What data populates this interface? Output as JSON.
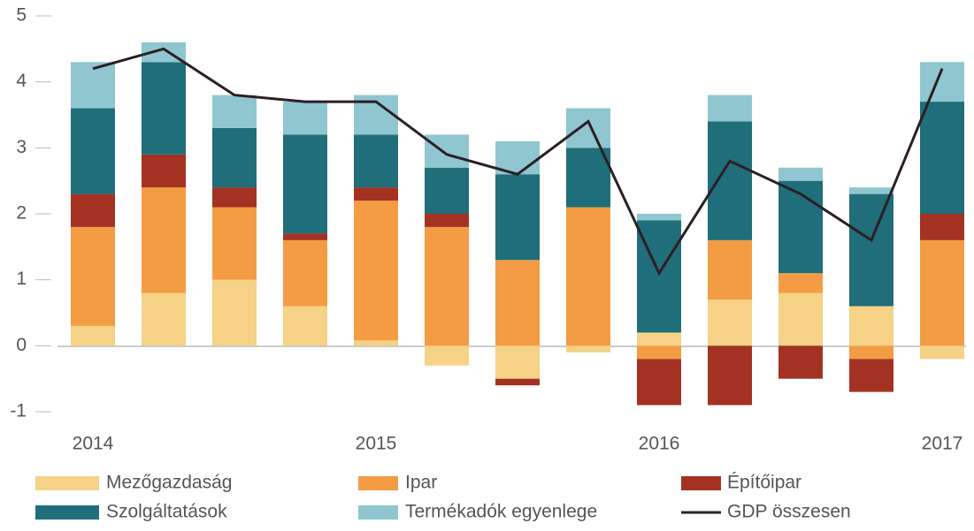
{
  "chart_data": {
    "type": "bar",
    "stacked": true,
    "categories": [
      "2014",
      null,
      null,
      null,
      "2015",
      null,
      null,
      null,
      "2016",
      null,
      null,
      null,
      "2017"
    ],
    "ylim": [
      -1,
      5
    ],
    "yticks": [
      -1,
      0,
      1,
      2,
      3,
      4,
      5
    ],
    "grid": false,
    "legend": "bottom",
    "series": [
      {
        "name": "Mezőgazdaság",
        "color": "#f5d285",
        "values": [
          0.3,
          0.8,
          1.0,
          0.6,
          0.08,
          -0.3,
          -0.5,
          -0.1,
          0.2,
          0.7,
          0.8,
          0.6,
          -0.2
        ]
      },
      {
        "name": "Ipar",
        "color": "#f39c44",
        "values": [
          1.5,
          1.6,
          1.1,
          1.0,
          2.12,
          1.8,
          1.3,
          2.1,
          -0.2,
          0.9,
          0.3,
          -0.2,
          1.6
        ]
      },
      {
        "name": "Építőipar",
        "color": "#a33222",
        "values": [
          0.5,
          0.5,
          0.3,
          0.1,
          0.2,
          0.2,
          -0.1,
          0,
          -0.7,
          -0.9,
          -0.5,
          -0.5,
          0.4
        ]
      },
      {
        "name": "Szolgáltatások",
        "color": "#1f6e7a",
        "values": [
          1.3,
          1.4,
          0.9,
          1.5,
          0.8,
          0.7,
          1.3,
          0.9,
          1.7,
          1.8,
          1.4,
          1.7,
          1.7
        ]
      },
      {
        "name": "Termékadók egyenlege",
        "color": "#8fc6d0",
        "values": [
          0.7,
          0.3,
          0.5,
          0.5,
          0.6,
          0.5,
          0.5,
          0.6,
          0.1,
          0.4,
          0.2,
          0.1,
          0.6
        ]
      },
      {
        "name": "GDP összesen",
        "color": "#2b1f24",
        "type": "line",
        "values": [
          4.2,
          4.5,
          3.8,
          3.7,
          3.7,
          2.9,
          2.6,
          3.4,
          1.1,
          2.8,
          2.3,
          1.6,
          4.2
        ]
      }
    ]
  }
}
